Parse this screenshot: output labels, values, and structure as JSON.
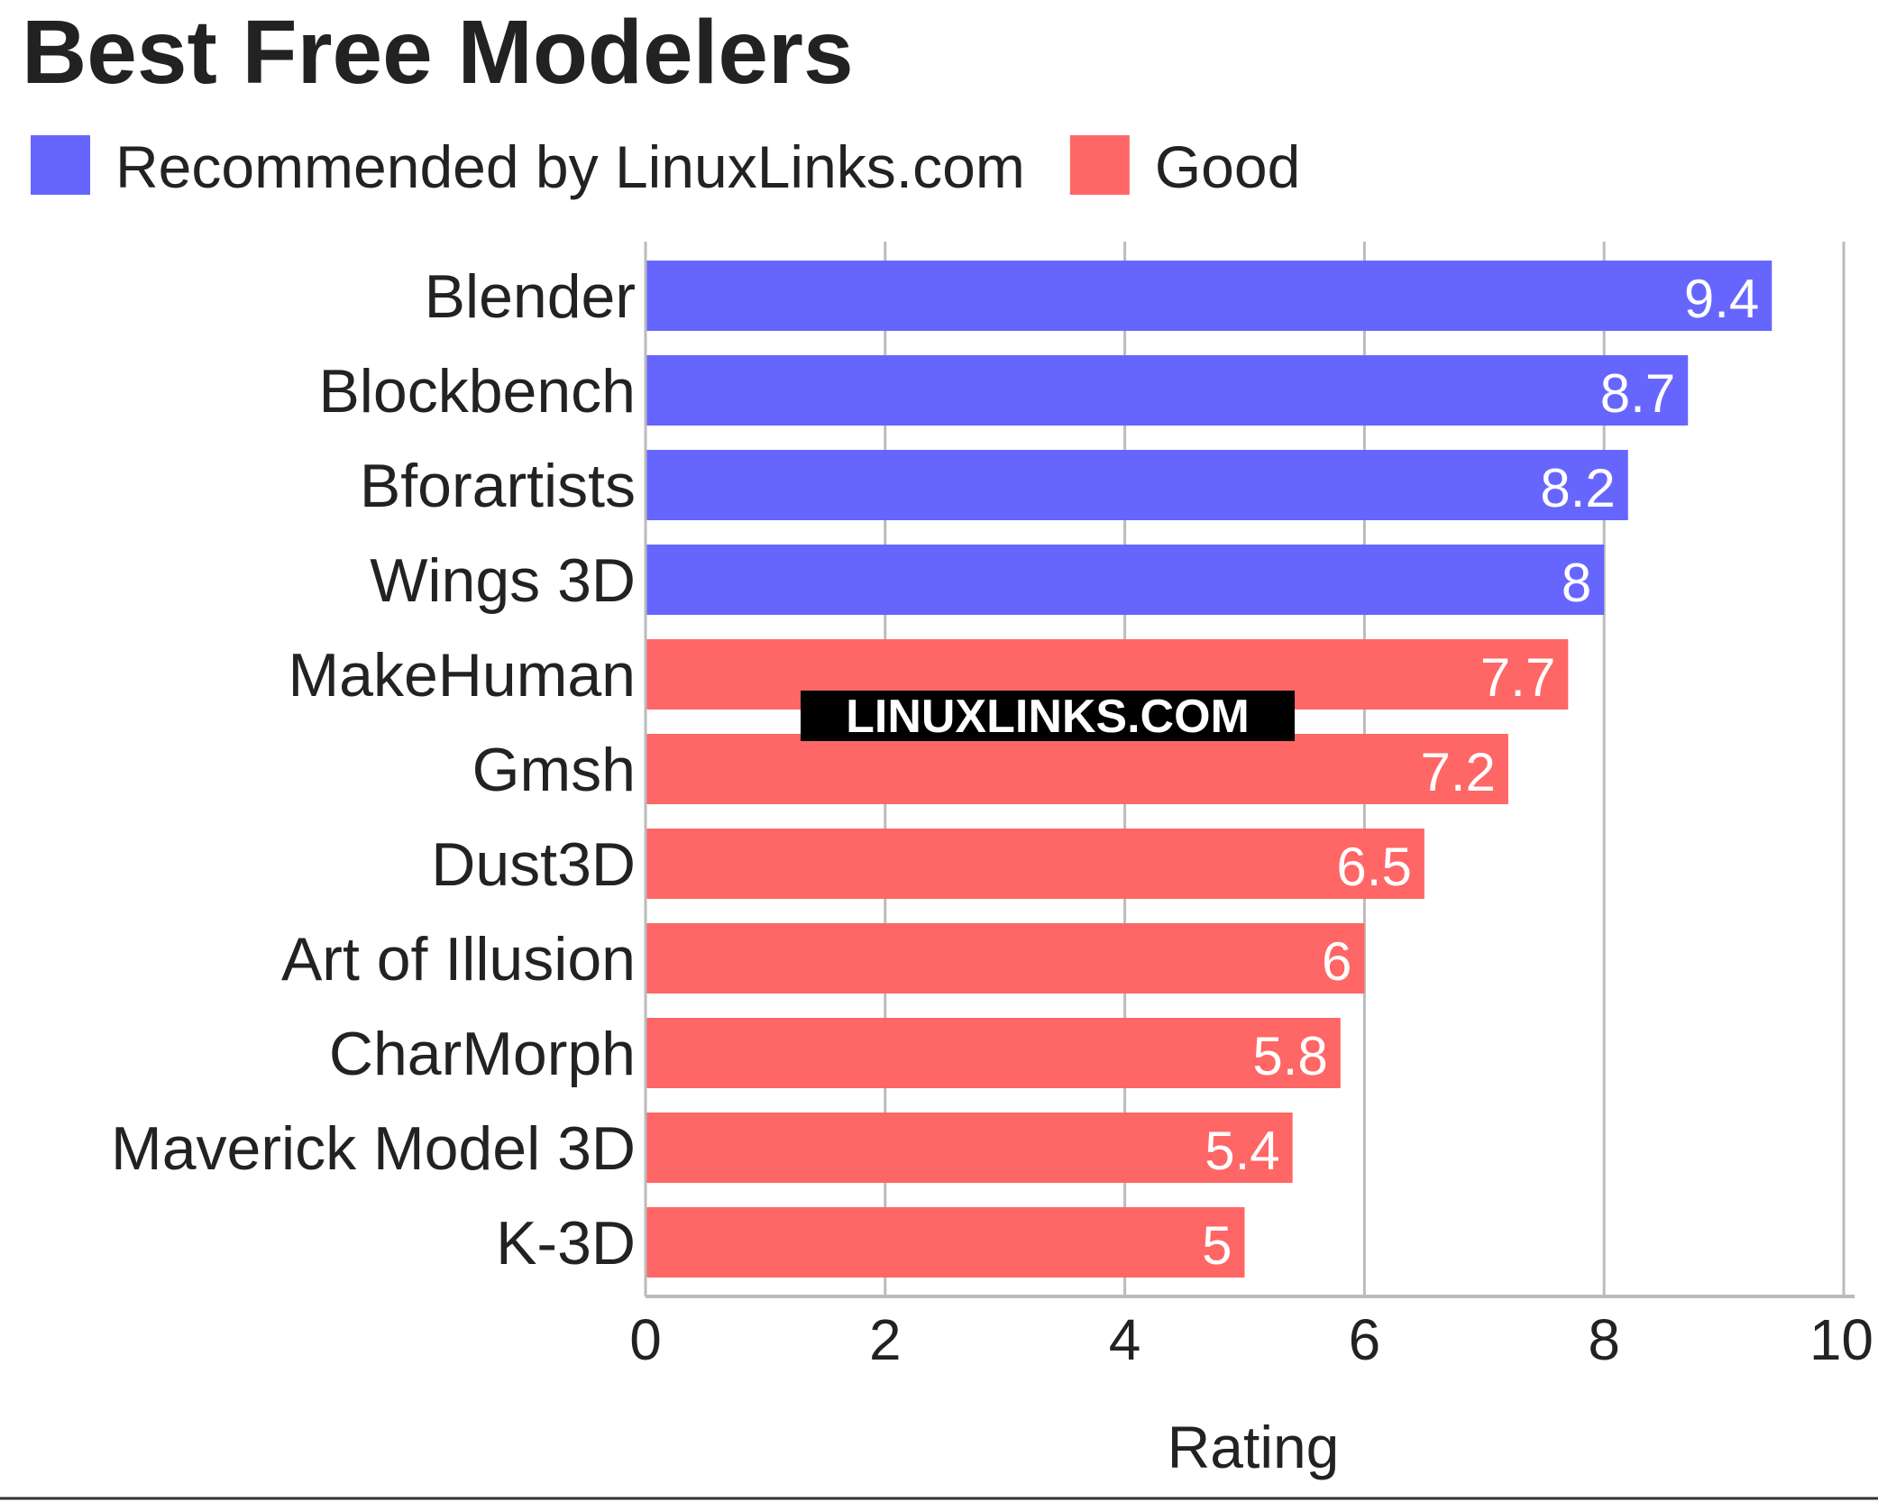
{
  "chart_data": {
    "type": "bar",
    "orientation": "horizontal",
    "title": "Best Free Modelers",
    "xlabel": "Rating",
    "ylabel": "",
    "xlim": [
      0,
      10
    ],
    "xticks": [
      "0",
      "2",
      "4",
      "6",
      "8",
      "10"
    ],
    "grid": true,
    "legend_position": "top-left",
    "legend": [
      {
        "label": "Recommended by LinuxLinks.com",
        "color": "#6666ff"
      },
      {
        "label": "Good",
        "color": "#ff6666"
      }
    ],
    "watermark": "LINUXLINKS.COM",
    "categories": [
      "Blender",
      "Blockbench",
      "Bforartists",
      "Wings 3D",
      "MakeHuman",
      "Gmsh",
      "Dust3D",
      "Art of Illusion",
      "CharMorph",
      "Maverick Model 3D",
      "K-3D"
    ],
    "values": [
      9.4,
      8.7,
      8.2,
      8,
      7.7,
      7.2,
      6.5,
      6,
      5.8,
      5.4,
      5
    ],
    "value_labels": [
      "9.4",
      "8.7",
      "8.2",
      "8",
      "7.7",
      "7.2",
      "6.5",
      "6",
      "5.8",
      "5.4",
      "5"
    ],
    "groups": [
      "Recommended by LinuxLinks.com",
      "Recommended by LinuxLinks.com",
      "Recommended by LinuxLinks.com",
      "Recommended by LinuxLinks.com",
      "Good",
      "Good",
      "Good",
      "Good",
      "Good",
      "Good",
      "Good"
    ]
  }
}
